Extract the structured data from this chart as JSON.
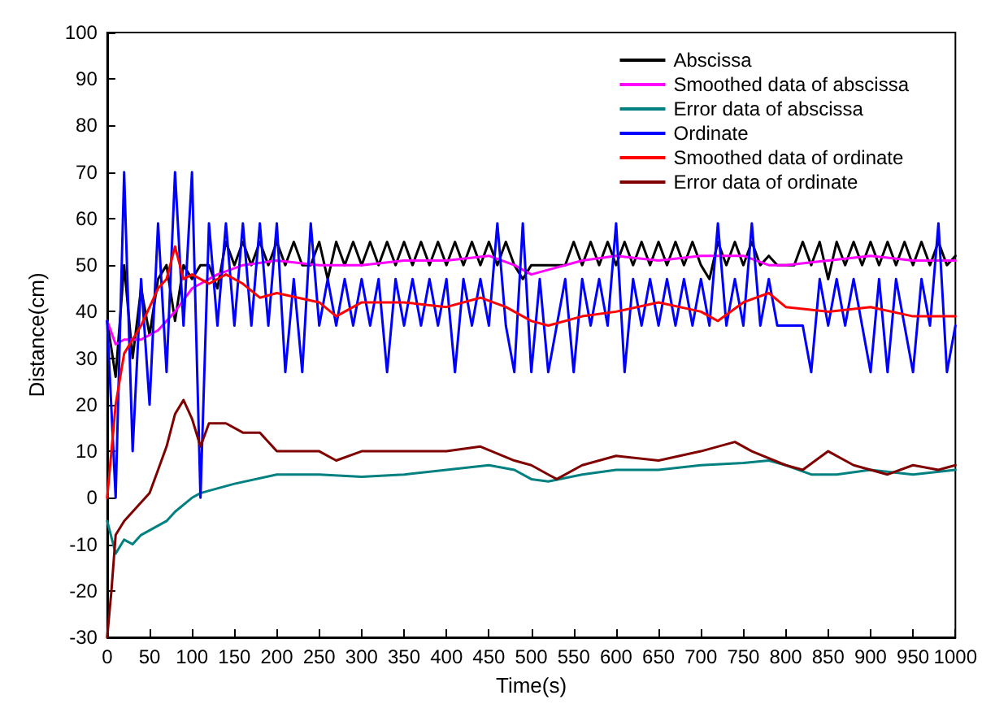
{
  "chart_data": {
    "type": "line",
    "xlabel": "Time(s)",
    "ylabel": "Distance(cm)",
    "xlim": [
      0,
      1000
    ],
    "ylim": [
      -30,
      100
    ],
    "xticks": [
      0,
      50,
      100,
      150,
      200,
      250,
      300,
      350,
      400,
      450,
      500,
      550,
      600,
      650,
      700,
      750,
      800,
      850,
      900,
      950,
      1000
    ],
    "yticks": [
      -30,
      -20,
      -10,
      0,
      10,
      20,
      30,
      40,
      50,
      60,
      70,
      80,
      90,
      100
    ],
    "grid": false,
    "legend": "top right",
    "marker": "none",
    "line_style": "solid",
    "series": [
      {
        "name": "Abscissa",
        "color": "#000000",
        "x": [
          0,
          10,
          20,
          30,
          40,
          50,
          60,
          70,
          80,
          90,
          100,
          110,
          120,
          130,
          140,
          150,
          160,
          170,
          180,
          190,
          200,
          210,
          220,
          230,
          240,
          250,
          260,
          270,
          280,
          290,
          300,
          310,
          320,
          330,
          340,
          350,
          360,
          370,
          380,
          390,
          400,
          410,
          420,
          430,
          440,
          450,
          460,
          470,
          480,
          490,
          500,
          510,
          520,
          530,
          540,
          550,
          560,
          570,
          580,
          590,
          600,
          610,
          620,
          630,
          640,
          650,
          660,
          670,
          680,
          690,
          700,
          710,
          720,
          730,
          740,
          750,
          760,
          770,
          780,
          790,
          800,
          810,
          820,
          830,
          840,
          850,
          860,
          870,
          880,
          890,
          900,
          910,
          920,
          930,
          940,
          950,
          960,
          970,
          980,
          990,
          1000
        ],
        "values": [
          38,
          26,
          50,
          30,
          45,
          35,
          47,
          50,
          38,
          50,
          47,
          50,
          50,
          45,
          55,
          50,
          55,
          50,
          55,
          50,
          55,
          50,
          55,
          50,
          50,
          55,
          47,
          55,
          50,
          55,
          50,
          55,
          50,
          55,
          50,
          55,
          50,
          55,
          50,
          55,
          50,
          55,
          50,
          55,
          50,
          55,
          50,
          55,
          50,
          47,
          50,
          50,
          50,
          50,
          50,
          55,
          50,
          55,
          50,
          55,
          50,
          55,
          50,
          55,
          50,
          55,
          50,
          55,
          50,
          55,
          50,
          47,
          55,
          50,
          55,
          50,
          55,
          50,
          52,
          50,
          50,
          50,
          55,
          50,
          55,
          47,
          55,
          50,
          55,
          50,
          55,
          50,
          55,
          50,
          55,
          50,
          55,
          50,
          55,
          50,
          52
        ]
      },
      {
        "name": "Smoothed data of abscissa",
        "color": "#ff00ff",
        "x": [
          0,
          10,
          20,
          40,
          60,
          80,
          100,
          130,
          160,
          200,
          250,
          300,
          350,
          400,
          450,
          480,
          500,
          520,
          560,
          600,
          650,
          700,
          750,
          780,
          800,
          850,
          900,
          950,
          1000
        ],
        "values": [
          38,
          33,
          34,
          34,
          36,
          40,
          45,
          48,
          50,
          51,
          50,
          50,
          51,
          51,
          52,
          50,
          48,
          49,
          51,
          52,
          51,
          52,
          52,
          50,
          50,
          51,
          52,
          51,
          51
        ]
      },
      {
        "name": "Error data of abscissa",
        "color": "#008080",
        "x": [
          0,
          10,
          20,
          30,
          40,
          50,
          70,
          80,
          100,
          110,
          150,
          200,
          250,
          300,
          350,
          400,
          450,
          480,
          500,
          520,
          560,
          600,
          650,
          700,
          750,
          780,
          800,
          830,
          860,
          900,
          950,
          1000
        ],
        "values": [
          -5,
          -12,
          -9,
          -10,
          -8,
          -7,
          -5,
          -3,
          0,
          1,
          3,
          5,
          5,
          4.5,
          5,
          6,
          7,
          6,
          4,
          3.5,
          5,
          6,
          6,
          7,
          7.5,
          8,
          7,
          5,
          5,
          6,
          5,
          6
        ]
      },
      {
        "name": "Ordinate",
        "color": "#0000ff",
        "x": [
          0,
          10,
          20,
          30,
          40,
          50,
          60,
          70,
          80,
          90,
          100,
          110,
          120,
          130,
          140,
          150,
          160,
          170,
          180,
          190,
          200,
          210,
          220,
          230,
          240,
          250,
          260,
          270,
          280,
          290,
          300,
          310,
          320,
          330,
          340,
          350,
          360,
          370,
          380,
          390,
          400,
          410,
          420,
          430,
          440,
          450,
          460,
          470,
          480,
          490,
          500,
          510,
          520,
          530,
          540,
          550,
          560,
          570,
          580,
          590,
          600,
          610,
          620,
          630,
          640,
          650,
          660,
          670,
          680,
          690,
          700,
          710,
          720,
          730,
          740,
          750,
          760,
          770,
          780,
          790,
          800,
          810,
          820,
          830,
          840,
          850,
          860,
          870,
          880,
          890,
          900,
          910,
          920,
          930,
          940,
          950,
          960,
          970,
          980,
          990,
          1000
        ],
        "values": [
          38,
          0,
          70,
          10,
          47,
          20,
          59,
          27,
          70,
          37,
          70,
          0,
          59,
          37,
          59,
          37,
          59,
          37,
          59,
          37,
          59,
          27,
          47,
          27,
          59,
          37,
          47,
          37,
          47,
          37,
          47,
          37,
          47,
          27,
          47,
          37,
          47,
          37,
          47,
          37,
          47,
          27,
          47,
          37,
          47,
          37,
          59,
          37,
          27,
          59,
          27,
          47,
          27,
          37,
          47,
          27,
          47,
          37,
          47,
          37,
          59,
          27,
          47,
          37,
          47,
          37,
          47,
          37,
          47,
          37,
          47,
          37,
          59,
          37,
          47,
          37,
          59,
          37,
          47,
          37,
          37,
          37,
          37,
          27,
          47,
          37,
          47,
          37,
          47,
          37,
          27,
          47,
          27,
          47,
          37,
          27,
          47,
          37,
          59,
          27,
          37
        ]
      },
      {
        "name": "Smoothed data of ordinate",
        "color": "#ff0000",
        "x": [
          0,
          10,
          20,
          40,
          60,
          70,
          80,
          90,
          100,
          120,
          140,
          160,
          180,
          200,
          250,
          270,
          300,
          350,
          400,
          440,
          470,
          500,
          520,
          560,
          600,
          650,
          700,
          720,
          750,
          780,
          800,
          850,
          900,
          950,
          1000
        ],
        "values": [
          0,
          20,
          31,
          37,
          45,
          47,
          54,
          47,
          48,
          46,
          48,
          46,
          43,
          44,
          42,
          39,
          42,
          42,
          41,
          43,
          41,
          38,
          37,
          39,
          40,
          42,
          40,
          38,
          42,
          44,
          41,
          40,
          41,
          39,
          39
        ]
      },
      {
        "name": "Error data of ordinate",
        "color": "#800000",
        "x": [
          0,
          5,
          10,
          20,
          30,
          50,
          60,
          70,
          80,
          90,
          100,
          110,
          120,
          140,
          160,
          180,
          200,
          250,
          270,
          300,
          350,
          400,
          440,
          480,
          500,
          520,
          530,
          560,
          600,
          650,
          700,
          740,
          760,
          800,
          820,
          850,
          880,
          900,
          920,
          950,
          980,
          1000
        ],
        "values": [
          -30,
          -20,
          -8,
          -5,
          -3,
          1,
          6,
          11,
          18,
          21,
          17,
          11,
          16,
          16,
          14,
          14,
          10,
          10,
          8,
          10,
          10,
          10,
          11,
          8,
          7,
          5,
          4,
          7,
          9,
          8,
          10,
          12,
          10,
          7,
          6,
          10,
          7,
          6,
          5,
          7,
          6,
          7
        ]
      }
    ]
  }
}
